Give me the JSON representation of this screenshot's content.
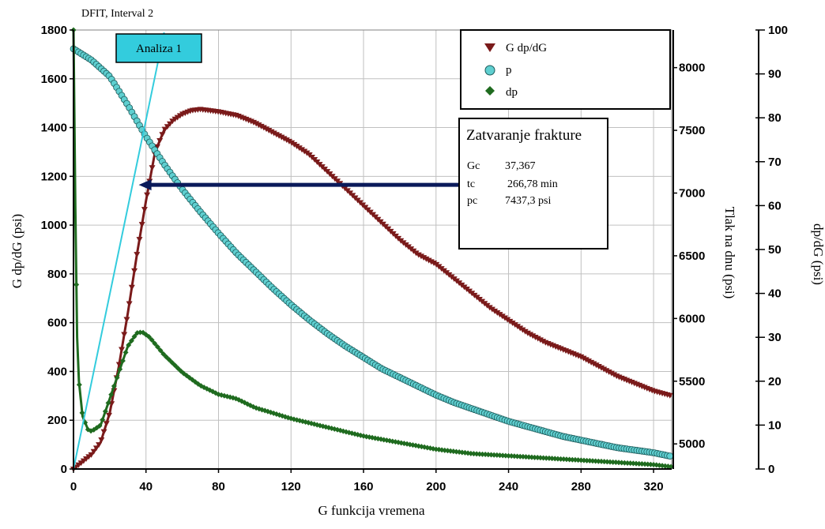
{
  "chart_data": {
    "type": "line",
    "title": "DFIT, Interval 2",
    "xlabel": "G funkcija vremena",
    "ylabel_left": "G dp/dG (psi)",
    "ylabel_right": "Tlak na dnu (psi)",
    "ylabel_right2": "dp/dG (psi)",
    "xlim": [
      0,
      330
    ],
    "ylim_left": [
      0,
      1800
    ],
    "ylim_right": [
      4800,
      8300
    ],
    "ylim_right2": [
      0,
      100
    ],
    "x_ticks": [
      0,
      40,
      80,
      120,
      160,
      200,
      240,
      280,
      320
    ],
    "y_left_ticks": [
      0,
      200,
      400,
      600,
      800,
      1000,
      1200,
      1400,
      1600,
      1800
    ],
    "y_right_ticks": [
      5000,
      5500,
      6000,
      6500,
      7000,
      7500,
      8000
    ],
    "y_right2_ticks": [
      0,
      10,
      20,
      30,
      40,
      50,
      60,
      70,
      80,
      90,
      100
    ],
    "grid": true,
    "legend_position": "top-right",
    "series": [
      {
        "name": "G dp/dG",
        "axis": "left",
        "color": "#7a1a1a",
        "marker": "triangle-down",
        "x": [
          0,
          5,
          10,
          15,
          20,
          25,
          30,
          35,
          40,
          45,
          50,
          55,
          60,
          65,
          70,
          80,
          90,
          100,
          110,
          120,
          130,
          140,
          150,
          160,
          170,
          180,
          190,
          200,
          210,
          220,
          230,
          240,
          250,
          260,
          270,
          280,
          290,
          300,
          310,
          320,
          330
        ],
        "values": [
          0,
          30,
          60,
          110,
          230,
          420,
          640,
          880,
          1100,
          1300,
          1390,
          1430,
          1455,
          1470,
          1475,
          1465,
          1450,
          1420,
          1380,
          1340,
          1290,
          1220,
          1150,
          1080,
          1010,
          940,
          880,
          840,
          780,
          720,
          660,
          610,
          560,
          520,
          490,
          460,
          420,
          380,
          350,
          320,
          300
        ]
      },
      {
        "name": "p",
        "axis": "right",
        "color": "#5fcfd0",
        "marker": "circle",
        "x": [
          0,
          10,
          20,
          30,
          40,
          50,
          60,
          70,
          80,
          90,
          100,
          110,
          120,
          130,
          140,
          150,
          160,
          170,
          180,
          190,
          200,
          210,
          220,
          230,
          240,
          250,
          260,
          270,
          280,
          290,
          300,
          310,
          320,
          330
        ],
        "values": [
          8150,
          8060,
          7930,
          7700,
          7450,
          7230,
          7030,
          6850,
          6680,
          6520,
          6380,
          6240,
          6110,
          5990,
          5880,
          5780,
          5690,
          5600,
          5530,
          5460,
          5390,
          5330,
          5280,
          5230,
          5180,
          5140,
          5100,
          5060,
          5030,
          5000,
          4970,
          4950,
          4930,
          4900
        ]
      },
      {
        "name": "dp",
        "axis": "right2",
        "color": "#1f6b1f",
        "marker": "diamond",
        "x": [
          0,
          1,
          2,
          3,
          5,
          8,
          10,
          15,
          20,
          25,
          30,
          35,
          38,
          42,
          50,
          60,
          70,
          80,
          90,
          100,
          120,
          140,
          160,
          180,
          200,
          220,
          240,
          260,
          280,
          300,
          320,
          330
        ],
        "values": [
          100,
          60,
          30,
          20,
          12,
          9,
          8.6,
          10,
          16,
          22,
          28,
          31,
          31.2,
          30,
          26,
          22,
          19,
          17,
          16,
          14,
          11.5,
          9.5,
          7.5,
          6,
          4.5,
          3.5,
          3,
          2.5,
          2,
          1.5,
          1,
          0.5
        ]
      }
    ],
    "annotations": {
      "analiza_label": "Analiza 1",
      "analysis_line": {
        "x": [
          0,
          50
        ],
        "values": [
          0,
          1790
        ]
      },
      "closure_line": {
        "x_start": 36,
        "x_end": 215,
        "y": 1165
      },
      "closure_box_title": "Zatvaranje frakture",
      "closure_rows": [
        {
          "key": "Gc",
          "value": "37,367"
        },
        {
          "key": "tc",
          "value": "266,78 min"
        },
        {
          "key": "pc",
          "value": "7437,3 psi"
        }
      ]
    }
  },
  "colors": {
    "grid": "#c0c0c0",
    "analysis_box": "#33ccdd",
    "closure_line": "#0a1a5a"
  }
}
